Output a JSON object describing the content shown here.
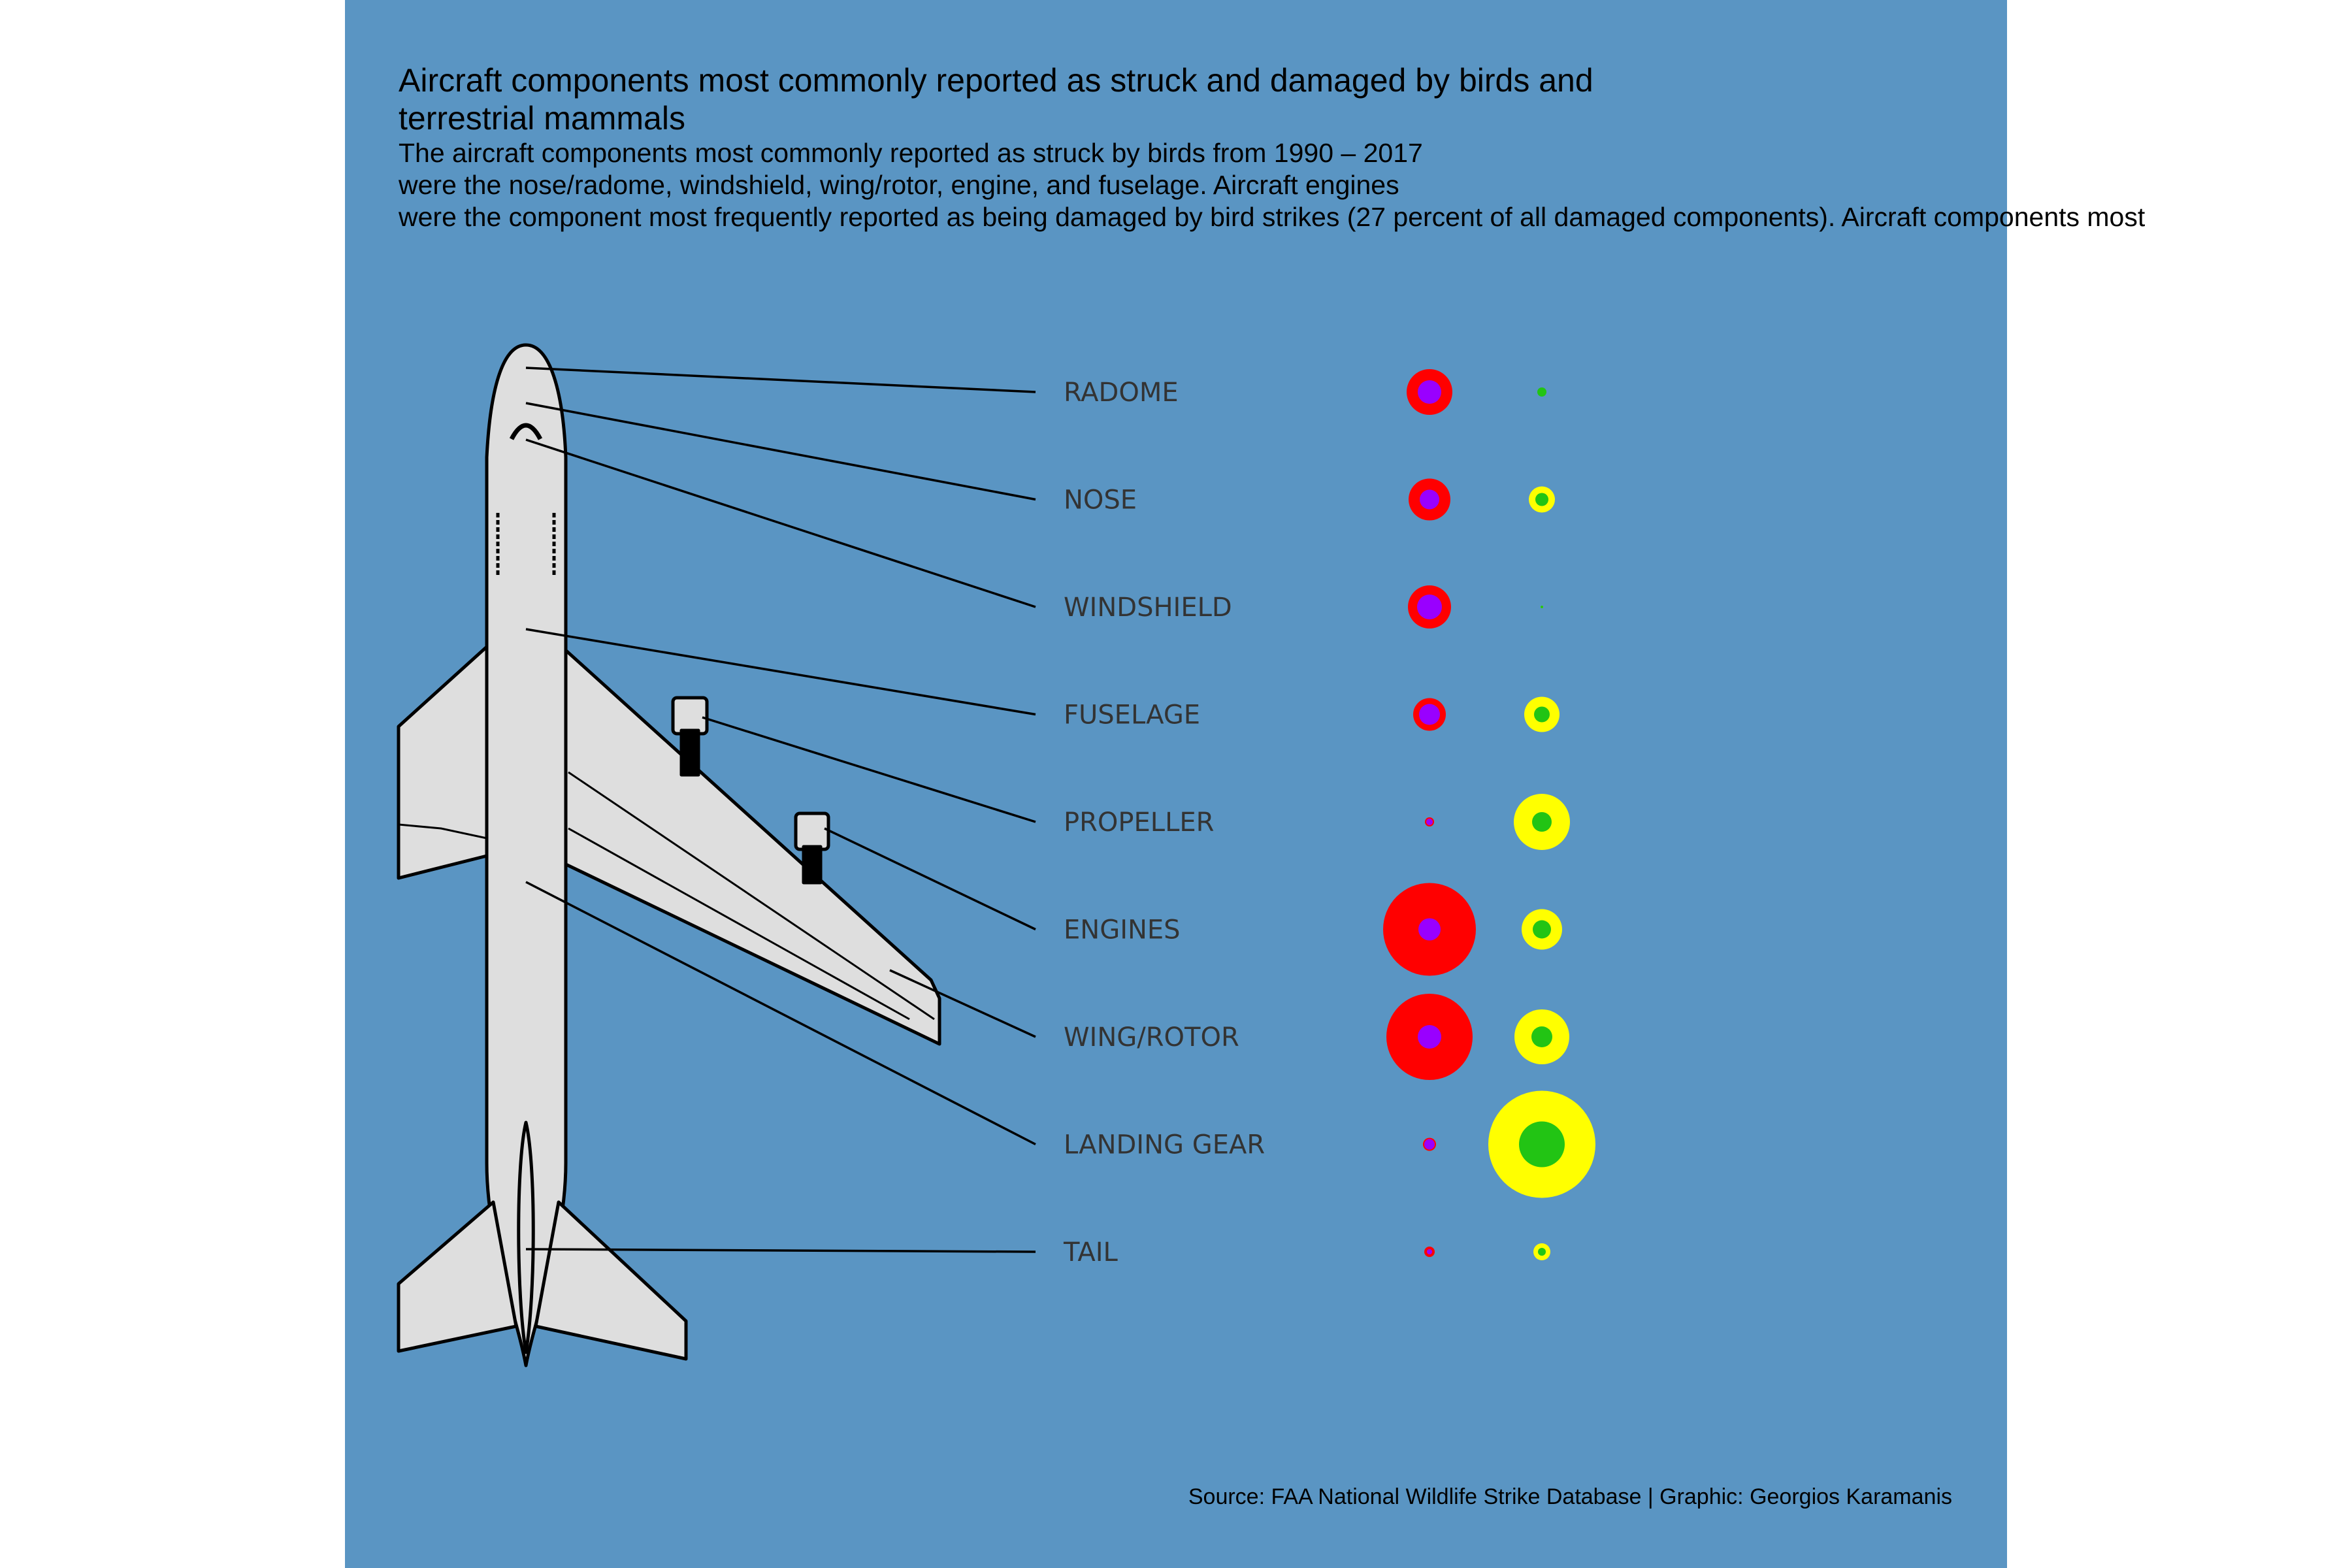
{
  "chart": {
    "title": "Aircraft components most commonly reported as struck and damaged by birds and terrestrial mammals",
    "subtitle_lines": [
      "The aircraft components most commonly reported as struck by birds from 1990 – 2017",
      "were the nose/radome, windshield, wing/rotor, engine, and fuselage. Aircraft engines",
      "were the component most frequently reported as being damaged by bird strikes (27 percent of all damaged components). Aircraft components most"
    ],
    "caption": "Source: FAA National Wildlife Strike Database | Graphic: Georgios Karamanis"
  },
  "colors": {
    "panel_background": "#5a95c3",
    "page_background": "#ffffff",
    "label_text": "#333333",
    "birds_struck": "#ff0000",
    "birds_damaged": "#9900ff",
    "mammals_struck": "#ffff00",
    "mammals_damaged": "#22c414",
    "plane_fill": "#dedede",
    "plane_stroke": "#000000"
  },
  "chart_data": {
    "type": "scatter",
    "description_encoding": "bubble size",
    "categories": [
      "RADOME",
      "NOSE",
      "WINDSHIELD",
      "FUSELAGE",
      "PROPELLER",
      "ENGINES",
      "WING/ROTOR",
      "LANDING GEAR",
      "TAIL"
    ],
    "series": [
      {
        "color": "#ff0000",
        "column": 1,
        "values": [
          35,
          32,
          33,
          25,
          7,
          71,
          66,
          10,
          8
        ]
      },
      {
        "color": "#9900ff",
        "column": 1,
        "values": [
          18,
          15,
          19,
          16,
          5,
          17,
          18,
          8,
          4
        ]
      },
      {
        "color": "#ffff00",
        "column": 2,
        "values": [
          4,
          20,
          2,
          27,
          43,
          31,
          42,
          82,
          13
        ]
      },
      {
        "color": "#22c414",
        "column": 2,
        "values": [
          7,
          10,
          1,
          12,
          15,
          14,
          16,
          35,
          6
        ]
      }
    ]
  }
}
